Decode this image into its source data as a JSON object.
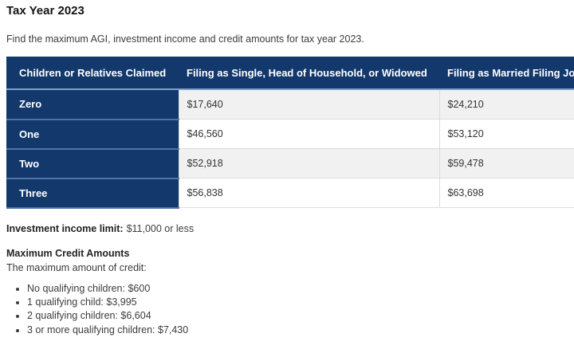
{
  "page": {
    "title": "Tax Year 2023",
    "intro": "Find the maximum AGI, investment income and credit amounts for tax year 2023."
  },
  "table": {
    "columns": [
      "Children or Relatives Claimed",
      "Filing as Single, Head of Household, or Widowed",
      "Filing as Married Filing Jointly"
    ],
    "rows": [
      {
        "label": "Zero",
        "single_hoh_widowed": "$17,640",
        "married_joint": "$24,210"
      },
      {
        "label": "One",
        "single_hoh_widowed": "$46,560",
        "married_joint": "$53,120"
      },
      {
        "label": "Two",
        "single_hoh_widowed": "$52,918",
        "married_joint": "$59,478"
      },
      {
        "label": "Three",
        "single_hoh_widowed": "$56,838",
        "married_joint": "$63,698"
      }
    ]
  },
  "investment_income_limit": {
    "label": "Investment income limit:",
    "value": "$11,000 or less"
  },
  "maximum_credit": {
    "heading": "Maximum Credit Amounts",
    "intro": "The maximum amount of credit:",
    "items": [
      "No qualifying children: $600",
      "1 qualifying child: $3,995",
      "2 qualifying children: $6,604",
      "3 or more qualifying children: $7,430"
    ]
  },
  "colors": {
    "table_header_bg": "#13386c",
    "table_header_text": "#ffffff",
    "row_alt_bg": "#f1f1f1",
    "header_divider": "#7f9fc7",
    "label_cell_divider": "#4f74a8",
    "row_divider": "#dcdcdc"
  }
}
